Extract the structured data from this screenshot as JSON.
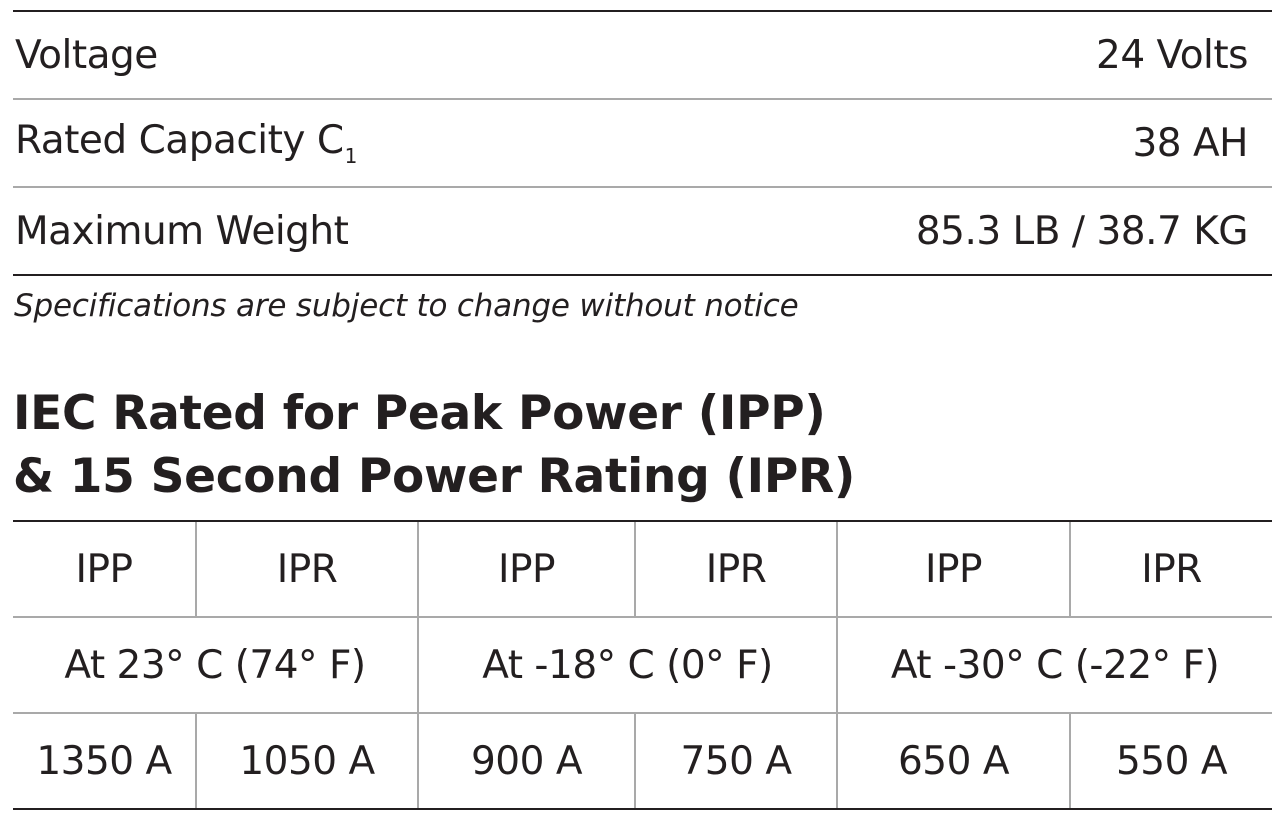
{
  "specs": [
    {
      "label": "Voltage",
      "value": "24 Volts"
    },
    {
      "label": "Rated Capacity C",
      "label_sub": "1",
      "value": "38 AH"
    },
    {
      "label": "Maximum Weight",
      "value": "85.3 LB / 38.7 KG"
    }
  ],
  "note": "Specifications are subject to change without notice",
  "heading": {
    "line1": "IEC Rated for Peak Power (IPP)",
    "line2": "& 15 Second Power Rating (IPR)"
  },
  "power_table": {
    "headers": [
      "IPP",
      "IPR",
      "IPP",
      "IPR",
      "IPP",
      "IPR"
    ],
    "conditions": [
      "At 23° C (74° F)",
      "At -18° C (0° F)",
      "At -30° C (-22° F)"
    ],
    "values": [
      "1350 A",
      "1050 A",
      "900 A",
      "750 A",
      "650 A",
      "550 A"
    ]
  },
  "colors": {
    "text": "#231f20",
    "rule": "#a9a9a9"
  }
}
